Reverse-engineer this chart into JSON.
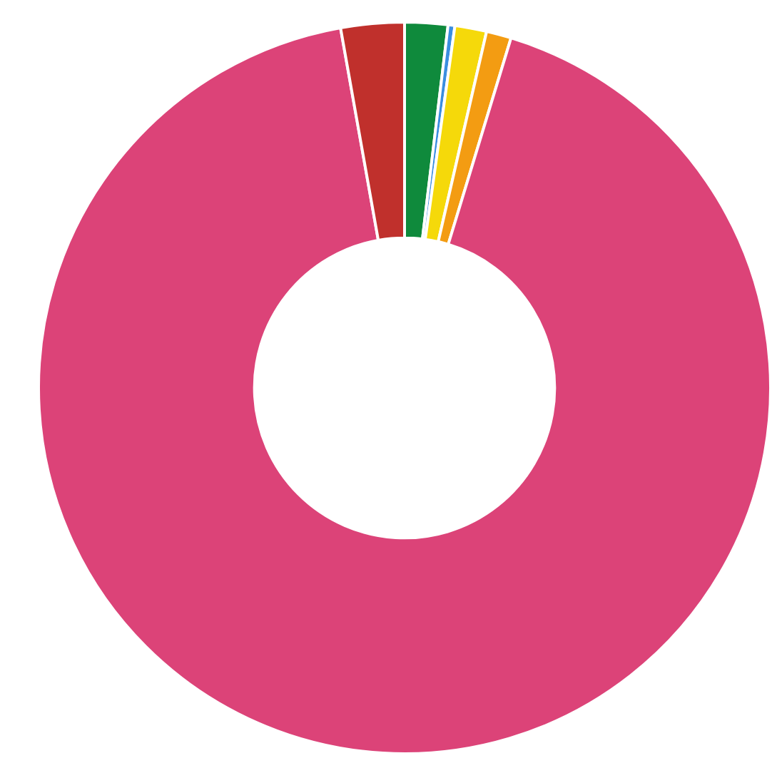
{
  "chart_data": {
    "type": "donut",
    "categories": [
      null,
      null,
      null,
      null,
      null,
      null
    ],
    "values": [
      1.9,
      0.3,
      1.4,
      1.1,
      92.5,
      2.8
    ],
    "colors": [
      "#0f8a3c",
      "#3a8ee0",
      "#f5d90a",
      "#f39c12",
      "#dc4378",
      "#c0302c"
    ],
    "legend": false
  }
}
